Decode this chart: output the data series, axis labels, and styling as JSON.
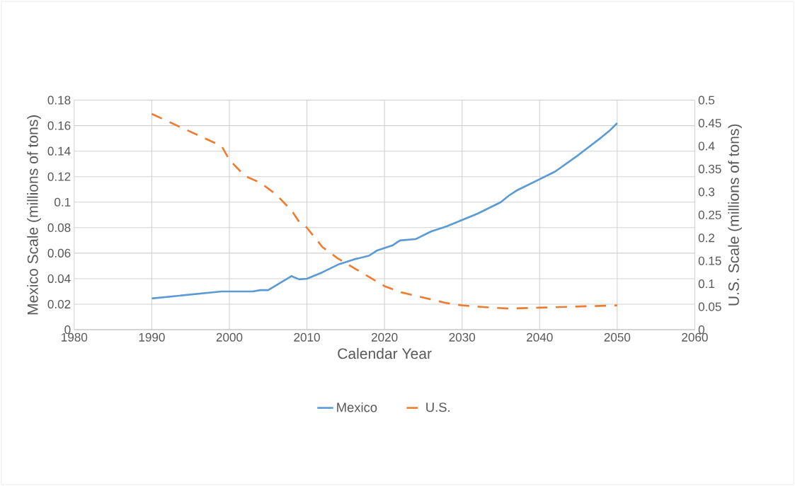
{
  "chart_data": {
    "type": "line",
    "xlabel": "Calendar Year",
    "ylabel": "Mexico Scale (millions of tons)",
    "y2label": "U.S. Scale (millions of tons)",
    "xlim": [
      1980,
      2060
    ],
    "xticks": [
      1980,
      1990,
      2000,
      2010,
      2020,
      2030,
      2040,
      2050,
      2060
    ],
    "ylim": [
      0,
      0.18
    ],
    "yticks": [
      0,
      0.02,
      0.04,
      0.06,
      0.08,
      0.1,
      0.12,
      0.14,
      0.16,
      0.18
    ],
    "y2lim": [
      0,
      0.5
    ],
    "y2ticks": [
      0,
      0.05,
      0.1,
      0.15,
      0.2,
      0.25,
      0.3,
      0.35,
      0.4,
      0.45,
      0.5
    ],
    "grid": true,
    "legend": "bottom",
    "marker": "none",
    "series": [
      {
        "name": "Mexico",
        "color": "#5b9bd5",
        "line_style": "solid",
        "x": [
          1990,
          1999,
          2003,
          2004,
          2005,
          2008,
          2009,
          2010,
          2012,
          2014,
          2016,
          2018,
          2019,
          2021,
          2022,
          2024,
          2026,
          2028,
          2030,
          2032,
          2035,
          2036,
          2037,
          2040,
          2042,
          2045,
          2048,
          2049,
          2050
        ],
        "values": [
          0.0245,
          0.03,
          0.03,
          0.031,
          0.031,
          0.042,
          0.0395,
          0.04,
          0.045,
          0.051,
          0.055,
          0.058,
          0.062,
          0.066,
          0.07,
          0.071,
          0.077,
          0.081,
          0.086,
          0.091,
          0.1,
          0.105,
          0.109,
          0.118,
          0.124,
          0.137,
          0.151,
          0.156,
          0.162
        ]
      },
      {
        "name": "U.S.",
        "color": "#ed7d31",
        "line_style": "dashed",
        "axis": "y2",
        "x": [
          1990,
          1999,
          2000,
          2002,
          2004,
          2006,
          2008,
          2009,
          2010,
          2012,
          2014,
          2016,
          2018,
          2020,
          2022,
          2025,
          2028,
          2030,
          2033,
          2036,
          2040,
          2044,
          2050
        ],
        "values": [
          0.47,
          0.4,
          0.37,
          0.335,
          0.32,
          0.295,
          0.26,
          0.235,
          0.222,
          0.18,
          0.155,
          0.135,
          0.115,
          0.095,
          0.082,
          0.07,
          0.058,
          0.053,
          0.049,
          0.046,
          0.048,
          0.05,
          0.053
        ]
      }
    ]
  }
}
